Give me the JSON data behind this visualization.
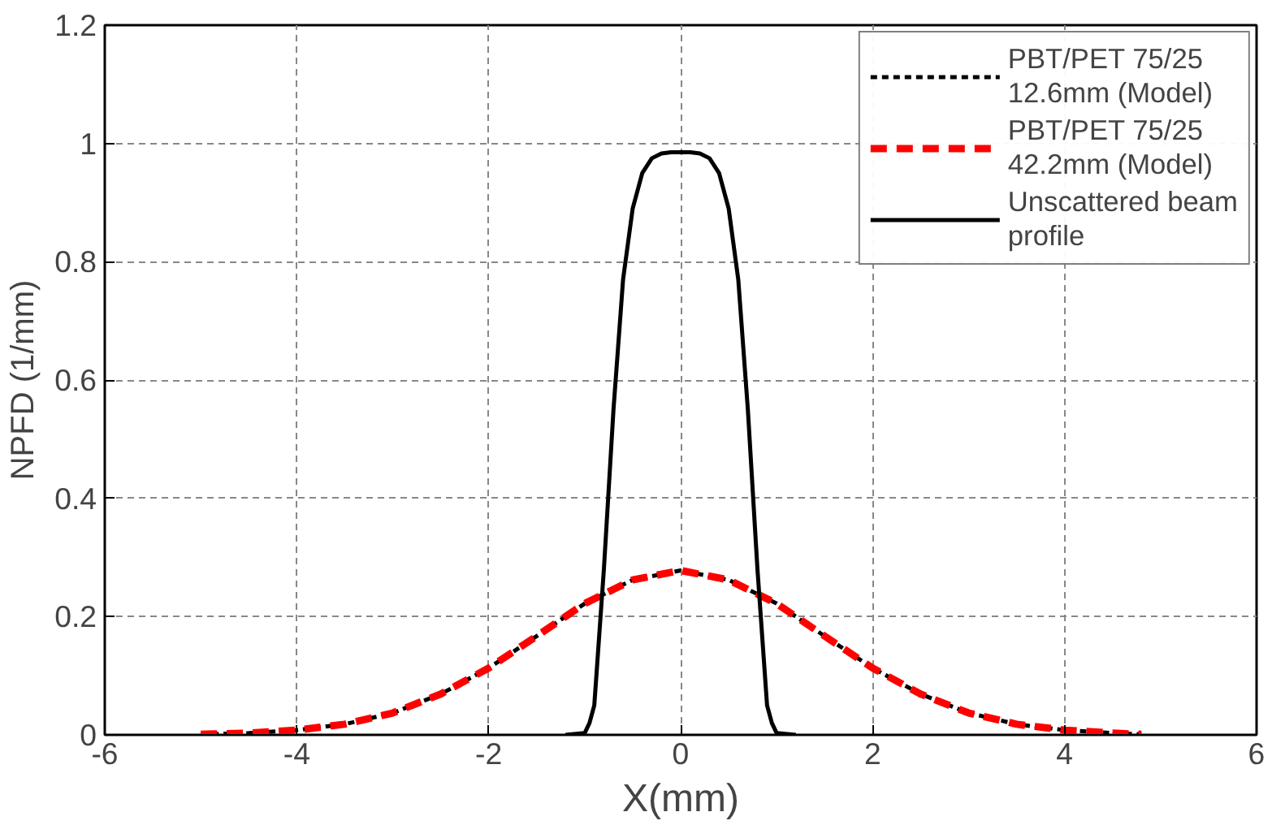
{
  "chart_data": {
    "type": "line",
    "xlabel": "X(mm)",
    "ylabel": "NPFD (1/mm)",
    "xlim": [
      -6,
      6
    ],
    "xticks": [
      -6,
      -4,
      -2,
      0,
      2,
      4,
      6
    ],
    "ylim": [
      0,
      1.2
    ],
    "yticks": [
      0,
      0.2,
      0.4,
      0.6,
      0.8,
      1,
      1.2
    ],
    "grid": true,
    "legend": "top right",
    "series": [
      {
        "name": "PBT/PET 75/25 12.6mm (Model)",
        "color": "#000000",
        "line_style": "dashed",
        "x": [
          -5,
          -4.5,
          -4,
          -3.5,
          -3,
          -2.5,
          -2,
          -1.5,
          -1,
          -0.5,
          0,
          0.5,
          1,
          1.5,
          2,
          2.5,
          3,
          3.5,
          4,
          4.5,
          4.8
        ],
        "values": [
          0.001,
          0.003,
          0.008,
          0.018,
          0.037,
          0.069,
          0.113,
          0.167,
          0.222,
          0.262,
          0.278,
          0.262,
          0.222,
          0.167,
          0.113,
          0.069,
          0.037,
          0.018,
          0.008,
          0.003,
          0.001
        ]
      },
      {
        "name": "PBT/PET 75/25 42.2mm (Model)",
        "color": "#ff0000",
        "line_style": "dashed",
        "x": [
          -5,
          -4.5,
          -4,
          -3.5,
          -3,
          -2.5,
          -2,
          -1.5,
          -1,
          -0.5,
          0,
          0.5,
          1,
          1.5,
          2,
          2.5,
          3,
          3.5,
          4,
          4.5,
          4.8
        ],
        "values": [
          0.001,
          0.003,
          0.008,
          0.018,
          0.037,
          0.069,
          0.113,
          0.167,
          0.222,
          0.262,
          0.278,
          0.262,
          0.222,
          0.167,
          0.113,
          0.069,
          0.037,
          0.018,
          0.008,
          0.003,
          0.001
        ]
      },
      {
        "name": "Unscattered beam profile",
        "color": "#000000",
        "line_style": "solid",
        "x": [
          -1.2,
          -1.0,
          -0.95,
          -0.9,
          -0.8,
          -0.7,
          -0.6,
          -0.5,
          -0.4,
          -0.3,
          -0.2,
          -0.1,
          0,
          0.1,
          0.2,
          0.3,
          0.4,
          0.5,
          0.6,
          0.7,
          0.8,
          0.9,
          0.95,
          1.0,
          1.2
        ],
        "values": [
          0,
          0.003,
          0.02,
          0.05,
          0.28,
          0.55,
          0.77,
          0.89,
          0.95,
          0.975,
          0.983,
          0.985,
          0.985,
          0.985,
          0.983,
          0.975,
          0.95,
          0.89,
          0.77,
          0.55,
          0.28,
          0.05,
          0.02,
          0.003,
          0
        ]
      }
    ]
  }
}
